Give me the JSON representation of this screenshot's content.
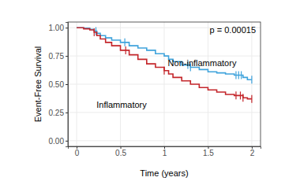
{
  "chart_data": {
    "type": "step",
    "x_label": "Time (years)",
    "y_label": "Event-Free Survival",
    "annotations": [
      "p = 0.00015"
    ],
    "xlim": [
      -0.1,
      2.1
    ],
    "xticks": [
      0,
      0.5,
      1,
      1.5,
      2
    ],
    "ylim": [
      -0.05,
      1.05
    ],
    "yticks": [
      {
        "value": 0,
        "label": "0.00"
      },
      {
        "value": 0.25,
        "label": "0.25"
      },
      {
        "value": 0.5,
        "label": "0.50"
      },
      {
        "value": 0.75,
        "label": "0.75"
      },
      {
        "value": 1,
        "label": "1.00"
      }
    ],
    "grid": true,
    "series": [
      {
        "name": "Non-inflammatory",
        "color": "#3fa3dc",
        "x": [
          0,
          0.08,
          0.15,
          0.2,
          0.23,
          0.27,
          0.33,
          0.4,
          0.5,
          0.6,
          0.7,
          0.8,
          0.9,
          1.0,
          1.05,
          1.1,
          1.2,
          1.3,
          1.4,
          1.5,
          1.6,
          1.7,
          1.8,
          1.9,
          1.95,
          2.0
        ],
        "values": [
          1,
          0.995,
          0.985,
          0.97,
          0.95,
          0.93,
          0.91,
          0.89,
          0.87,
          0.84,
          0.82,
          0.8,
          0.77,
          0.75,
          0.72,
          0.7,
          0.67,
          0.65,
          0.63,
          0.61,
          0.6,
          0.59,
          0.58,
          0.56,
          0.54,
          0.54
        ],
        "censored": [
          0.22,
          0.55,
          1.27,
          1.3,
          1.82,
          1.85,
          1.88,
          2.0
        ]
      },
      {
        "name": "Inflammatory",
        "color": "#c4262b",
        "x": [
          0,
          0.08,
          0.15,
          0.2,
          0.23,
          0.27,
          0.33,
          0.4,
          0.5,
          0.6,
          0.7,
          0.8,
          0.9,
          1.0,
          1.05,
          1.1,
          1.2,
          1.3,
          1.4,
          1.5,
          1.6,
          1.7,
          1.8,
          1.9,
          1.95,
          2.0
        ],
        "values": [
          1,
          0.99,
          0.98,
          0.96,
          0.93,
          0.9,
          0.87,
          0.84,
          0.8,
          0.76,
          0.72,
          0.68,
          0.65,
          0.62,
          0.59,
          0.56,
          0.53,
          0.5,
          0.47,
          0.45,
          0.43,
          0.41,
          0.4,
          0.38,
          0.37,
          0.37
        ],
        "censored": [
          0.2,
          0.56,
          1.0,
          1.82,
          1.87,
          1.9,
          2.0
        ]
      }
    ]
  }
}
